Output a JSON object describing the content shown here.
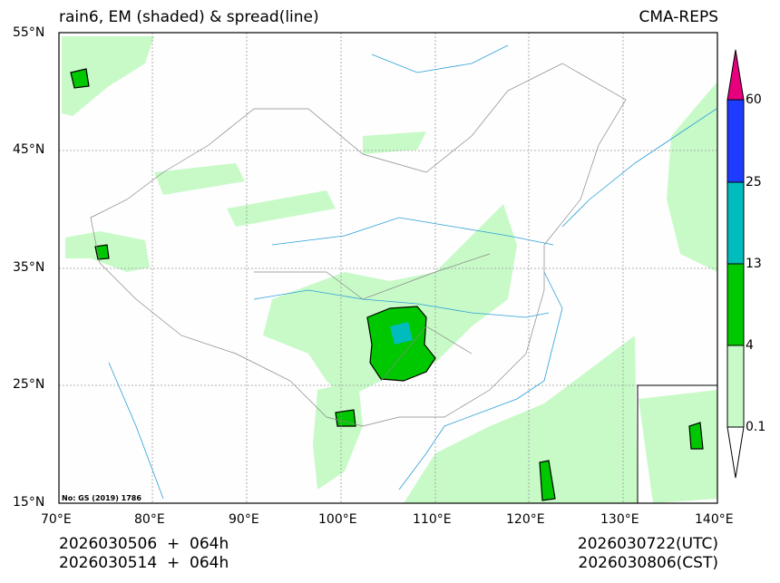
{
  "header": {
    "title_left": "rain6, EM (shaded) & spread(line)",
    "title_right": "CMA-REPS"
  },
  "axes": {
    "lat_ticks": [
      "55°N",
      "45°N",
      "35°N",
      "25°N",
      "15°N"
    ],
    "lon_ticks": [
      "70°E",
      "80°E",
      "90°E",
      "100°E",
      "110°E",
      "120°E",
      "130°E",
      "140°E"
    ]
  },
  "map": {
    "approval_no": "No: GS (2019) 1786"
  },
  "colorbar": {
    "levels": [
      "0.1",
      "4",
      "13",
      "25",
      "60"
    ],
    "colors": [
      "#ffffff",
      "#c8fac8",
      "#00c800",
      "#00bcbc",
      "#1e3cff",
      "#e6007e"
    ]
  },
  "footer": {
    "init_utc": "2026030506  +  064h",
    "init_cst": "2026030514  +  064h",
    "valid_utc": "2026030722(UTC)",
    "valid_cst": "2026030806(CST)"
  }
}
